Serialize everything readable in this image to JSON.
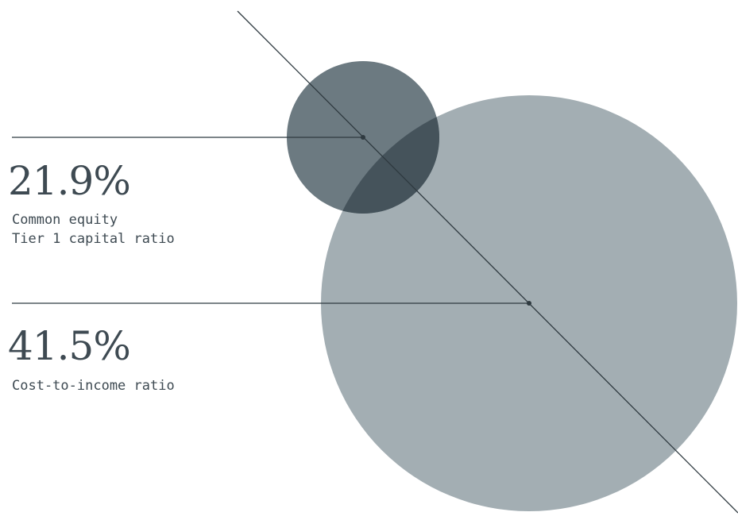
{
  "chart_data": {
    "type": "bubble",
    "metrics": [
      {
        "value": 21.9,
        "value_text": "21.9%",
        "label": "Common equity\nTier 1 capital ratio",
        "color": "#6c7a81"
      },
      {
        "value": 41.5,
        "value_text": "41.5%",
        "label": "Cost-to-income ratio",
        "color": "#a3aeb3"
      }
    ],
    "overlap_color": "#45535b",
    "line_color": "#2f3a40"
  }
}
